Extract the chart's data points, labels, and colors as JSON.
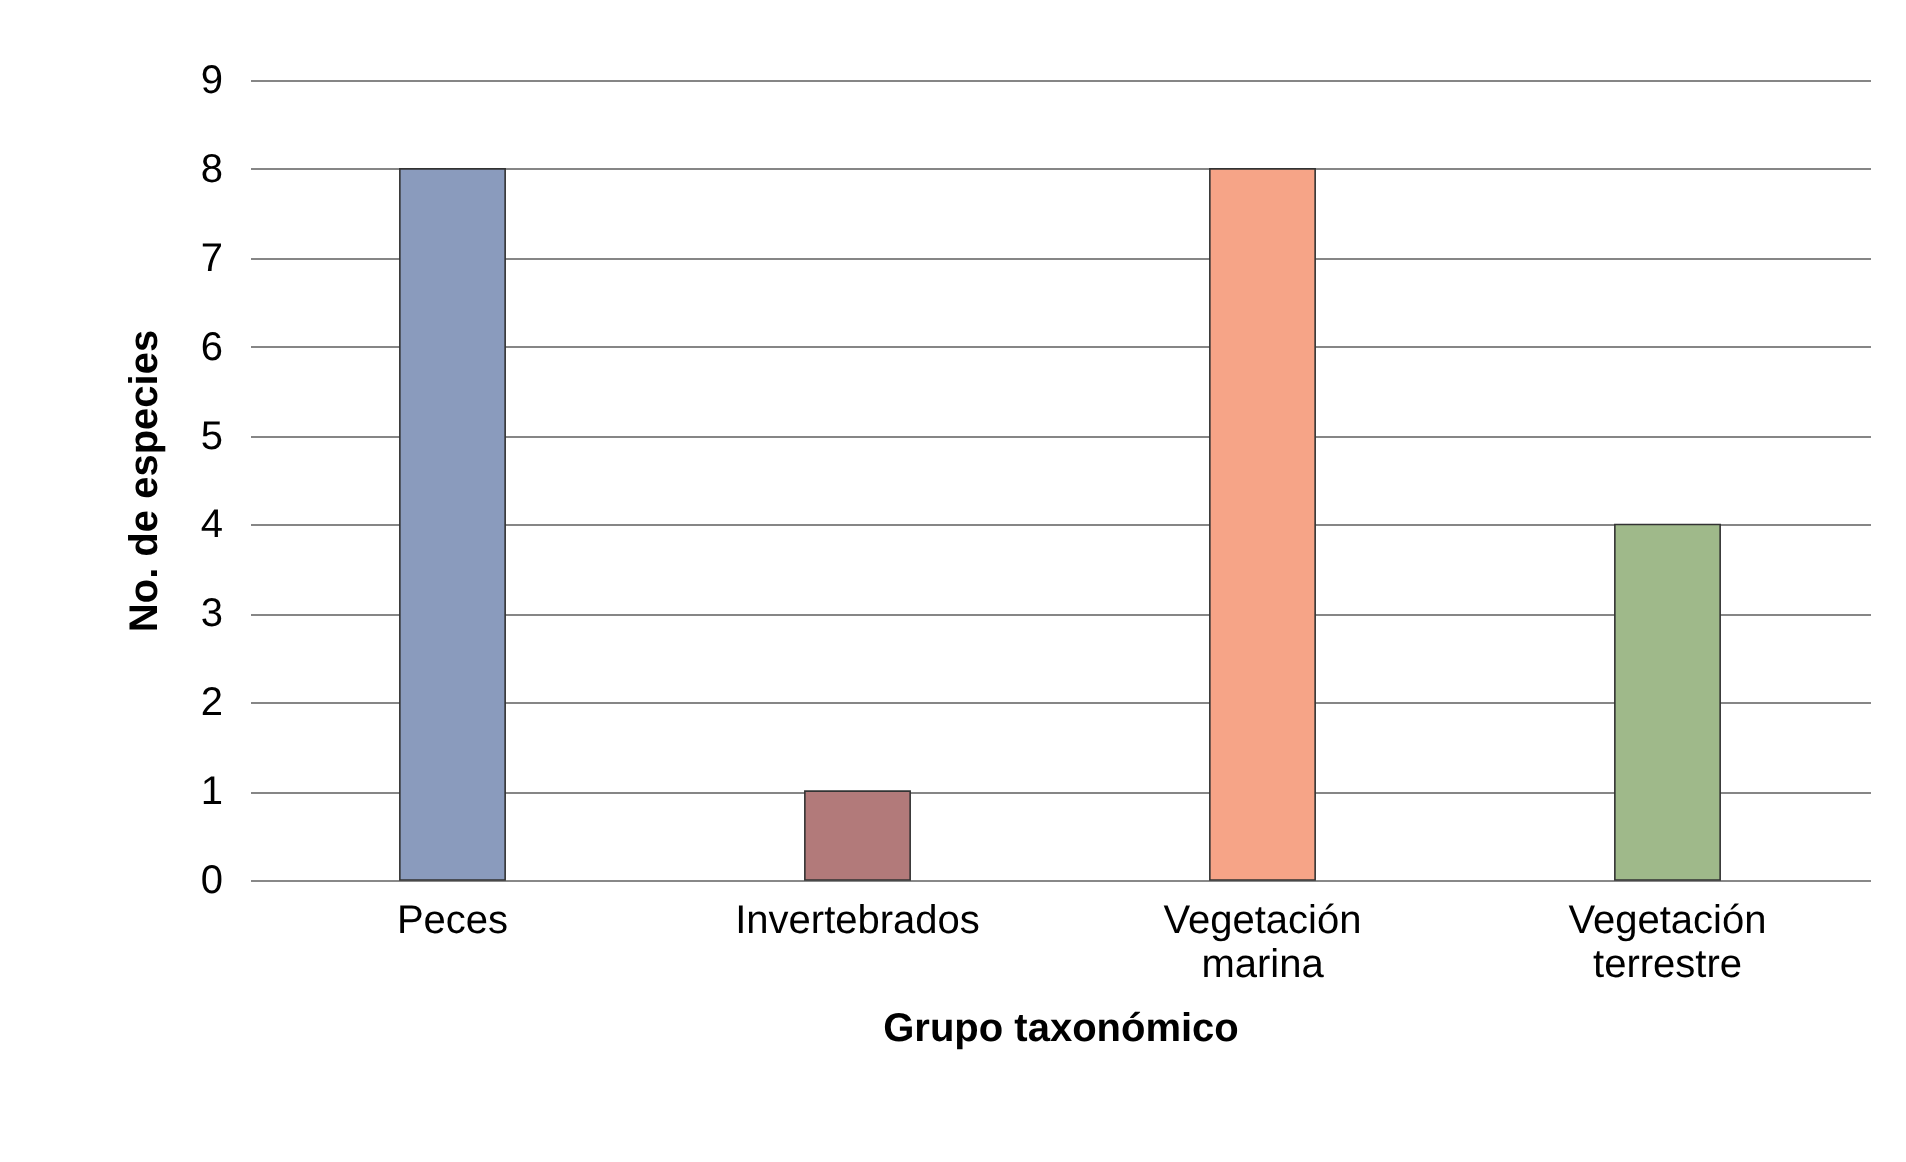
{
  "chart_data": {
    "type": "bar",
    "xlabel": "Grupo taxonómico",
    "ylabel": "No. de especies",
    "categories": [
      "Peces",
      "Invertebrados",
      "Vegetación marina",
      "Vegetación terrestre"
    ],
    "values": [
      8,
      1,
      8,
      4
    ],
    "colors": [
      "#8a9bbd",
      "#b27a7a",
      "#f6a487",
      "#9fb98a"
    ],
    "ylim": [
      0,
      9
    ],
    "yticks": [
      0,
      1,
      2,
      3,
      4,
      5,
      6,
      7,
      8,
      9
    ],
    "grid": "y"
  }
}
